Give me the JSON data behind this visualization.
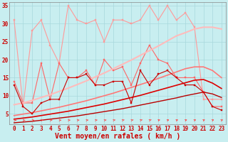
{
  "background_color": "#c8eef0",
  "grid_color": "#a8d8dc",
  "xlabel": "Vent moyen/en rafales ( km/h )",
  "xlim": [
    -0.5,
    23.5
  ],
  "ylim": [
    2,
    36
  ],
  "yticks": [
    5,
    10,
    15,
    20,
    25,
    30,
    35
  ],
  "xticks": [
    0,
    1,
    2,
    3,
    4,
    5,
    6,
    7,
    8,
    9,
    10,
    11,
    12,
    13,
    14,
    15,
    16,
    17,
    18,
    19,
    20,
    21,
    22,
    23
  ],
  "lines": [
    {
      "label": "rafales_top",
      "color": "#ff9999",
      "linewidth": 0.8,
      "marker": "s",
      "markersize": 2.0,
      "y": [
        31,
        7,
        28,
        31,
        24,
        19,
        35,
        31,
        30,
        31,
        25,
        31,
        31,
        30,
        31,
        35,
        31,
        35,
        31,
        33,
        29,
        9,
        9,
        9
      ]
    },
    {
      "label": "rafales_mid",
      "color": "#ff6666",
      "linewidth": 0.8,
      "marker": "s",
      "markersize": 2.0,
      "y": [
        14,
        8,
        8,
        19,
        9,
        19,
        15,
        15,
        17,
        13,
        20,
        17,
        18,
        13,
        19,
        24,
        20,
        19,
        15,
        15,
        15,
        11,
        7,
        7
      ]
    },
    {
      "label": "trend_light",
      "color": "#ffbbbb",
      "linewidth": 1.5,
      "marker": null,
      "y": [
        7.5,
        8.0,
        8.7,
        9.5,
        10.3,
        11.2,
        12.1,
        13.1,
        14.1,
        15.2,
        16.3,
        17.5,
        18.7,
        19.9,
        21.2,
        22.5,
        23.8,
        25.2,
        26.6,
        27.5,
        28.5,
        29.0,
        29.0,
        28.5
      ]
    },
    {
      "label": "trend_med",
      "color": "#ff7777",
      "linewidth": 1.2,
      "marker": null,
      "y": [
        4.5,
        4.9,
        5.3,
        5.8,
        6.3,
        6.8,
        7.4,
        8.0,
        8.6,
        9.3,
        10.0,
        10.7,
        11.5,
        12.3,
        13.1,
        13.9,
        14.8,
        15.7,
        16.6,
        17.5,
        18.0,
        18.0,
        17.0,
        15.0
      ]
    },
    {
      "label": "trend_dark1",
      "color": "#dd0000",
      "linewidth": 1.2,
      "marker": null,
      "y": [
        3.5,
        3.8,
        4.1,
        4.5,
        4.9,
        5.3,
        5.7,
        6.2,
        6.7,
        7.2,
        7.7,
        8.3,
        8.9,
        9.5,
        10.1,
        10.8,
        11.5,
        12.2,
        12.9,
        13.6,
        14.3,
        14.5,
        13.5,
        12.0
      ]
    },
    {
      "label": "trend_dark2",
      "color": "#bb0000",
      "linewidth": 1.0,
      "marker": null,
      "y": [
        2.5,
        2.7,
        2.9,
        3.2,
        3.5,
        3.8,
        4.1,
        4.4,
        4.8,
        5.2,
        5.6,
        6.0,
        6.4,
        6.9,
        7.4,
        7.9,
        8.4,
        8.9,
        9.4,
        10.0,
        10.5,
        11.0,
        10.5,
        9.5
      ]
    },
    {
      "label": "vent_mean",
      "color": "#cc0000",
      "linewidth": 0.8,
      "marker": "s",
      "markersize": 2.0,
      "y": [
        13,
        7,
        5,
        8,
        9,
        9,
        15,
        15,
        16,
        13,
        13,
        14,
        14,
        8,
        17,
        13,
        16,
        17,
        15,
        13,
        13,
        11,
        7,
        6
      ]
    }
  ],
  "xlabel_color": "#cc0000",
  "xlabel_fontsize": 7,
  "tick_color": "#cc0000",
  "tick_fontsize": 5.5
}
